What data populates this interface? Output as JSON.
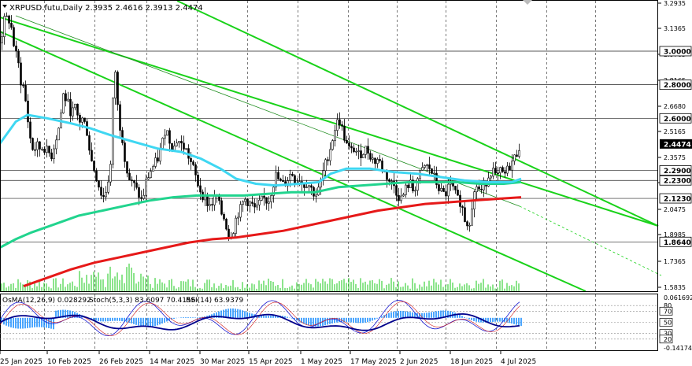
{
  "header": {
    "symbol_line": "XRPUSD.futu,Daily  2.3935 2.4616 2.3913 2.4474"
  },
  "oscillator_header": {
    "osma": "OsMA(12,26,9) 0.028292",
    "stoch": "Stoch(5,3,3) 83.6097 70.4156",
    "rsi": "RSI(14) 63.9379"
  },
  "colors": {
    "candles": "#000000",
    "ma_fast": "#3fd7f2",
    "ma_mid": "#21d48e",
    "ma_slow": "#e61919",
    "channel": "#19d219",
    "trendline": "#1e8c1e",
    "level_line": "#222222",
    "grid": "#222222",
    "osma_bars": "#1e90ff",
    "volume": "#19c819",
    "stoch_main": "#1a1ad2",
    "stoch_signal": "#d21a1a",
    "rsi": "#00008b",
    "price_box": "#000000"
  },
  "chart_data": {
    "type": "candlestick",
    "timeframe": "Daily",
    "x_tick_labels": [
      "25 Jan 2025",
      "10 Feb 2025",
      "26 Feb 2025",
      "14 Mar 2025",
      "30 Mar 2025",
      "15 Apr 2025",
      "1 May 2025",
      "17 May 2025",
      "2 Jun 2025",
      "18 Jun 2025",
      "4 Jul 2025"
    ],
    "price_axis_ticks": [
      "3.2935",
      "3.1365",
      "2.9765",
      "2.8165",
      "2.6680",
      "2.5165",
      "2.3575",
      "2.2150",
      "2.0475",
      "1.8985",
      "1.7365",
      "1.5835"
    ],
    "price_range": [
      1.57,
      3.3
    ],
    "last_price": 2.4474,
    "level_labels": [
      {
        "value": 3.0,
        "label": "3.0000"
      },
      {
        "value": 2.8,
        "label": "2.8000"
      },
      {
        "value": 2.6,
        "label": "2.6000"
      },
      {
        "value": 2.29,
        "label": "2.2900"
      },
      {
        "value": 2.23,
        "label": "2.2300"
      },
      {
        "value": 2.123,
        "label": "2.1230"
      },
      {
        "value": 1.864,
        "label": "1.8640"
      }
    ],
    "osc_axis_ticks": [
      "0.061692",
      "80",
      "70",
      "50",
      "30",
      "20",
      "-0.141740"
    ],
    "osc_levels": [
      80,
      70,
      50,
      30,
      20
    ],
    "close_path": [
      [
        0,
        3.05
      ],
      [
        5,
        3.18
      ],
      [
        10,
        3.2
      ],
      [
        15,
        3.12
      ],
      [
        18,
        3.0
      ],
      [
        22,
        2.95
      ],
      [
        26,
        2.82
      ],
      [
        30,
        2.78
      ],
      [
        34,
        2.62
      ],
      [
        38,
        2.48
      ],
      [
        42,
        2.4
      ],
      [
        46,
        2.44
      ],
      [
        50,
        2.42
      ],
      [
        55,
        2.43
      ],
      [
        60,
        2.4
      ],
      [
        65,
        2.38
      ],
      [
        70,
        2.47
      ],
      [
        75,
        2.56
      ],
      [
        80,
        2.74
      ],
      [
        85,
        2.7
      ],
      [
        90,
        2.63
      ],
      [
        95,
        2.66
      ],
      [
        100,
        2.58
      ],
      [
        105,
        2.6
      ],
      [
        110,
        2.52
      ],
      [
        115,
        2.36
      ],
      [
        120,
        2.28
      ],
      [
        125,
        2.2
      ],
      [
        130,
        2.12
      ],
      [
        135,
        2.18
      ],
      [
        140,
        2.32
      ],
      [
        145,
        2.95
      ],
      [
        150,
        2.6
      ],
      [
        155,
        2.48
      ],
      [
        160,
        2.3
      ],
      [
        165,
        2.22
      ],
      [
        170,
        2.2
      ],
      [
        175,
        2.15
      ],
      [
        180,
        2.1
      ],
      [
        185,
        2.22
      ],
      [
        190,
        2.28
      ],
      [
        195,
        2.32
      ],
      [
        200,
        2.36
      ],
      [
        205,
        2.44
      ],
      [
        210,
        2.55
      ],
      [
        215,
        2.47
      ],
      [
        220,
        2.42
      ],
      [
        225,
        2.48
      ],
      [
        230,
        2.44
      ],
      [
        235,
        2.42
      ],
      [
        240,
        2.36
      ],
      [
        245,
        2.3
      ],
      [
        250,
        2.22
      ],
      [
        255,
        2.16
      ],
      [
        260,
        2.12
      ],
      [
        265,
        2.08
      ],
      [
        270,
        2.1
      ],
      [
        275,
        2.14
      ],
      [
        280,
        2.04
      ],
      [
        285,
        2.0
      ],
      [
        290,
        1.9
      ],
      [
        295,
        1.92
      ],
      [
        300,
        2.02
      ],
      [
        305,
        2.06
      ],
      [
        310,
        2.12
      ],
      [
        315,
        2.1
      ],
      [
        320,
        2.08
      ],
      [
        325,
        2.05
      ],
      [
        330,
        2.1
      ],
      [
        335,
        2.12
      ],
      [
        340,
        2.1
      ],
      [
        345,
        2.18
      ],
      [
        350,
        2.26
      ],
      [
        355,
        2.22
      ],
      [
        360,
        2.2
      ],
      [
        365,
        2.24
      ],
      [
        370,
        2.28
      ],
      [
        375,
        2.22
      ],
      [
        380,
        2.24
      ],
      [
        385,
        2.2
      ],
      [
        390,
        2.22
      ],
      [
        395,
        2.18
      ],
      [
        400,
        2.14
      ],
      [
        405,
        2.18
      ],
      [
        410,
        2.28
      ],
      [
        415,
        2.36
      ],
      [
        420,
        2.44
      ],
      [
        425,
        2.54
      ],
      [
        430,
        2.6
      ],
      [
        435,
        2.52
      ],
      [
        440,
        2.44
      ],
      [
        445,
        2.4
      ],
      [
        450,
        2.42
      ],
      [
        455,
        2.38
      ],
      [
        460,
        2.4
      ],
      [
        465,
        2.42
      ],
      [
        470,
        2.38
      ],
      [
        475,
        2.34
      ],
      [
        480,
        2.36
      ],
      [
        485,
        2.3
      ],
      [
        490,
        2.26
      ],
      [
        495,
        2.22
      ],
      [
        500,
        2.2
      ],
      [
        505,
        2.14
      ],
      [
        510,
        2.12
      ],
      [
        515,
        2.18
      ],
      [
        520,
        2.22
      ],
      [
        525,
        2.16
      ],
      [
        530,
        2.24
      ],
      [
        535,
        2.28
      ],
      [
        540,
        2.32
      ],
      [
        545,
        2.3
      ],
      [
        550,
        2.26
      ],
      [
        555,
        2.2
      ],
      [
        560,
        2.16
      ],
      [
        565,
        2.14
      ],
      [
        570,
        2.2
      ],
      [
        575,
        2.18
      ],
      [
        580,
        2.12
      ],
      [
        585,
        2.1
      ],
      [
        590,
        2.0
      ],
      [
        595,
        1.96
      ],
      [
        600,
        2.12
      ],
      [
        605,
        2.2
      ],
      [
        610,
        2.16
      ],
      [
        615,
        2.2
      ],
      [
        620,
        2.26
      ],
      [
        625,
        2.3
      ],
      [
        630,
        2.24
      ],
      [
        635,
        2.28
      ],
      [
        640,
        2.26
      ],
      [
        645,
        2.3
      ],
      [
        650,
        2.34
      ],
      [
        655,
        2.38
      ],
      [
        660,
        2.4474
      ]
    ],
    "ma_fast_path": [
      [
        0,
        2.45
      ],
      [
        20,
        2.58
      ],
      [
        35,
        2.62
      ],
      [
        60,
        2.6
      ],
      [
        90,
        2.57
      ],
      [
        115,
        2.54
      ],
      [
        140,
        2.5
      ],
      [
        170,
        2.46
      ],
      [
        200,
        2.42
      ],
      [
        230,
        2.4
      ],
      [
        255,
        2.36
      ],
      [
        280,
        2.3
      ],
      [
        300,
        2.24
      ],
      [
        325,
        2.21
      ],
      [
        350,
        2.2
      ],
      [
        380,
        2.21
      ],
      [
        405,
        2.22
      ],
      [
        420,
        2.27
      ],
      [
        440,
        2.3
      ],
      [
        470,
        2.3
      ],
      [
        500,
        2.28
      ],
      [
        530,
        2.27
      ],
      [
        560,
        2.25
      ],
      [
        590,
        2.23
      ],
      [
        620,
        2.22
      ],
      [
        650,
        2.22
      ],
      [
        662,
        2.24
      ]
    ],
    "ma_mid_path": [
      [
        0,
        1.83
      ],
      [
        20,
        1.88
      ],
      [
        40,
        1.92
      ],
      [
        70,
        1.97
      ],
      [
        100,
        2.02
      ],
      [
        130,
        2.05
      ],
      [
        160,
        2.08
      ],
      [
        190,
        2.11
      ],
      [
        220,
        2.13
      ],
      [
        250,
        2.14
      ],
      [
        280,
        2.14
      ],
      [
        310,
        2.14
      ],
      [
        340,
        2.15
      ],
      [
        370,
        2.16
      ],
      [
        400,
        2.16
      ],
      [
        430,
        2.19
      ],
      [
        460,
        2.2
      ],
      [
        490,
        2.21
      ],
      [
        520,
        2.22
      ],
      [
        550,
        2.22
      ],
      [
        580,
        2.22
      ],
      [
        610,
        2.21
      ],
      [
        640,
        2.21
      ],
      [
        662,
        2.22
      ]
    ],
    "ma_slow_path": [
      [
        30,
        1.6
      ],
      [
        60,
        1.65
      ],
      [
        90,
        1.7
      ],
      [
        120,
        1.74
      ],
      [
        150,
        1.77
      ],
      [
        180,
        1.8
      ],
      [
        210,
        1.83
      ],
      [
        240,
        1.86
      ],
      [
        270,
        1.88
      ],
      [
        300,
        1.89
      ],
      [
        330,
        1.91
      ],
      [
        360,
        1.93
      ],
      [
        390,
        1.96
      ],
      [
        420,
        1.99
      ],
      [
        450,
        2.02
      ],
      [
        480,
        2.05
      ],
      [
        510,
        2.07
      ],
      [
        540,
        2.09
      ],
      [
        570,
        2.1
      ],
      [
        600,
        2.11
      ],
      [
        630,
        2.12
      ],
      [
        662,
        2.13
      ]
    ]
  }
}
